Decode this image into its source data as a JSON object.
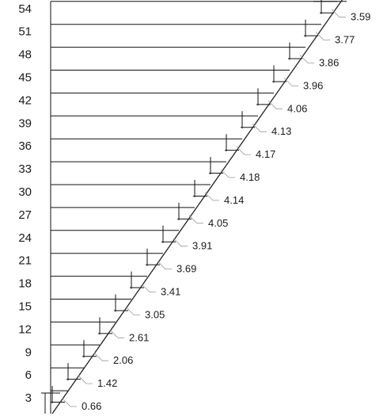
{
  "diagram": {
    "levels": [
      {
        "label": "54",
        "value": "3.59"
      },
      {
        "label": "51",
        "value": "3.77"
      },
      {
        "label": "48",
        "value": "3.86"
      },
      {
        "label": "45",
        "value": "3.96"
      },
      {
        "label": "42",
        "value": "4.06"
      },
      {
        "label": "39",
        "value": "4.13"
      },
      {
        "label": "36",
        "value": "4.17"
      },
      {
        "label": "33",
        "value": "4.18"
      },
      {
        "label": "30",
        "value": "4.14"
      },
      {
        "label": "27",
        "value": "4.05"
      },
      {
        "label": "24",
        "value": "3.91"
      },
      {
        "label": "21",
        "value": "3.69"
      },
      {
        "label": "18",
        "value": "3.41"
      },
      {
        "label": "15",
        "value": "3.05"
      },
      {
        "label": "12",
        "value": "2.61"
      },
      {
        "label": "9",
        "value": "2.06"
      },
      {
        "label": "6",
        "value": "1.42"
      },
      {
        "label": "3",
        "value": "0.66"
      }
    ]
  }
}
